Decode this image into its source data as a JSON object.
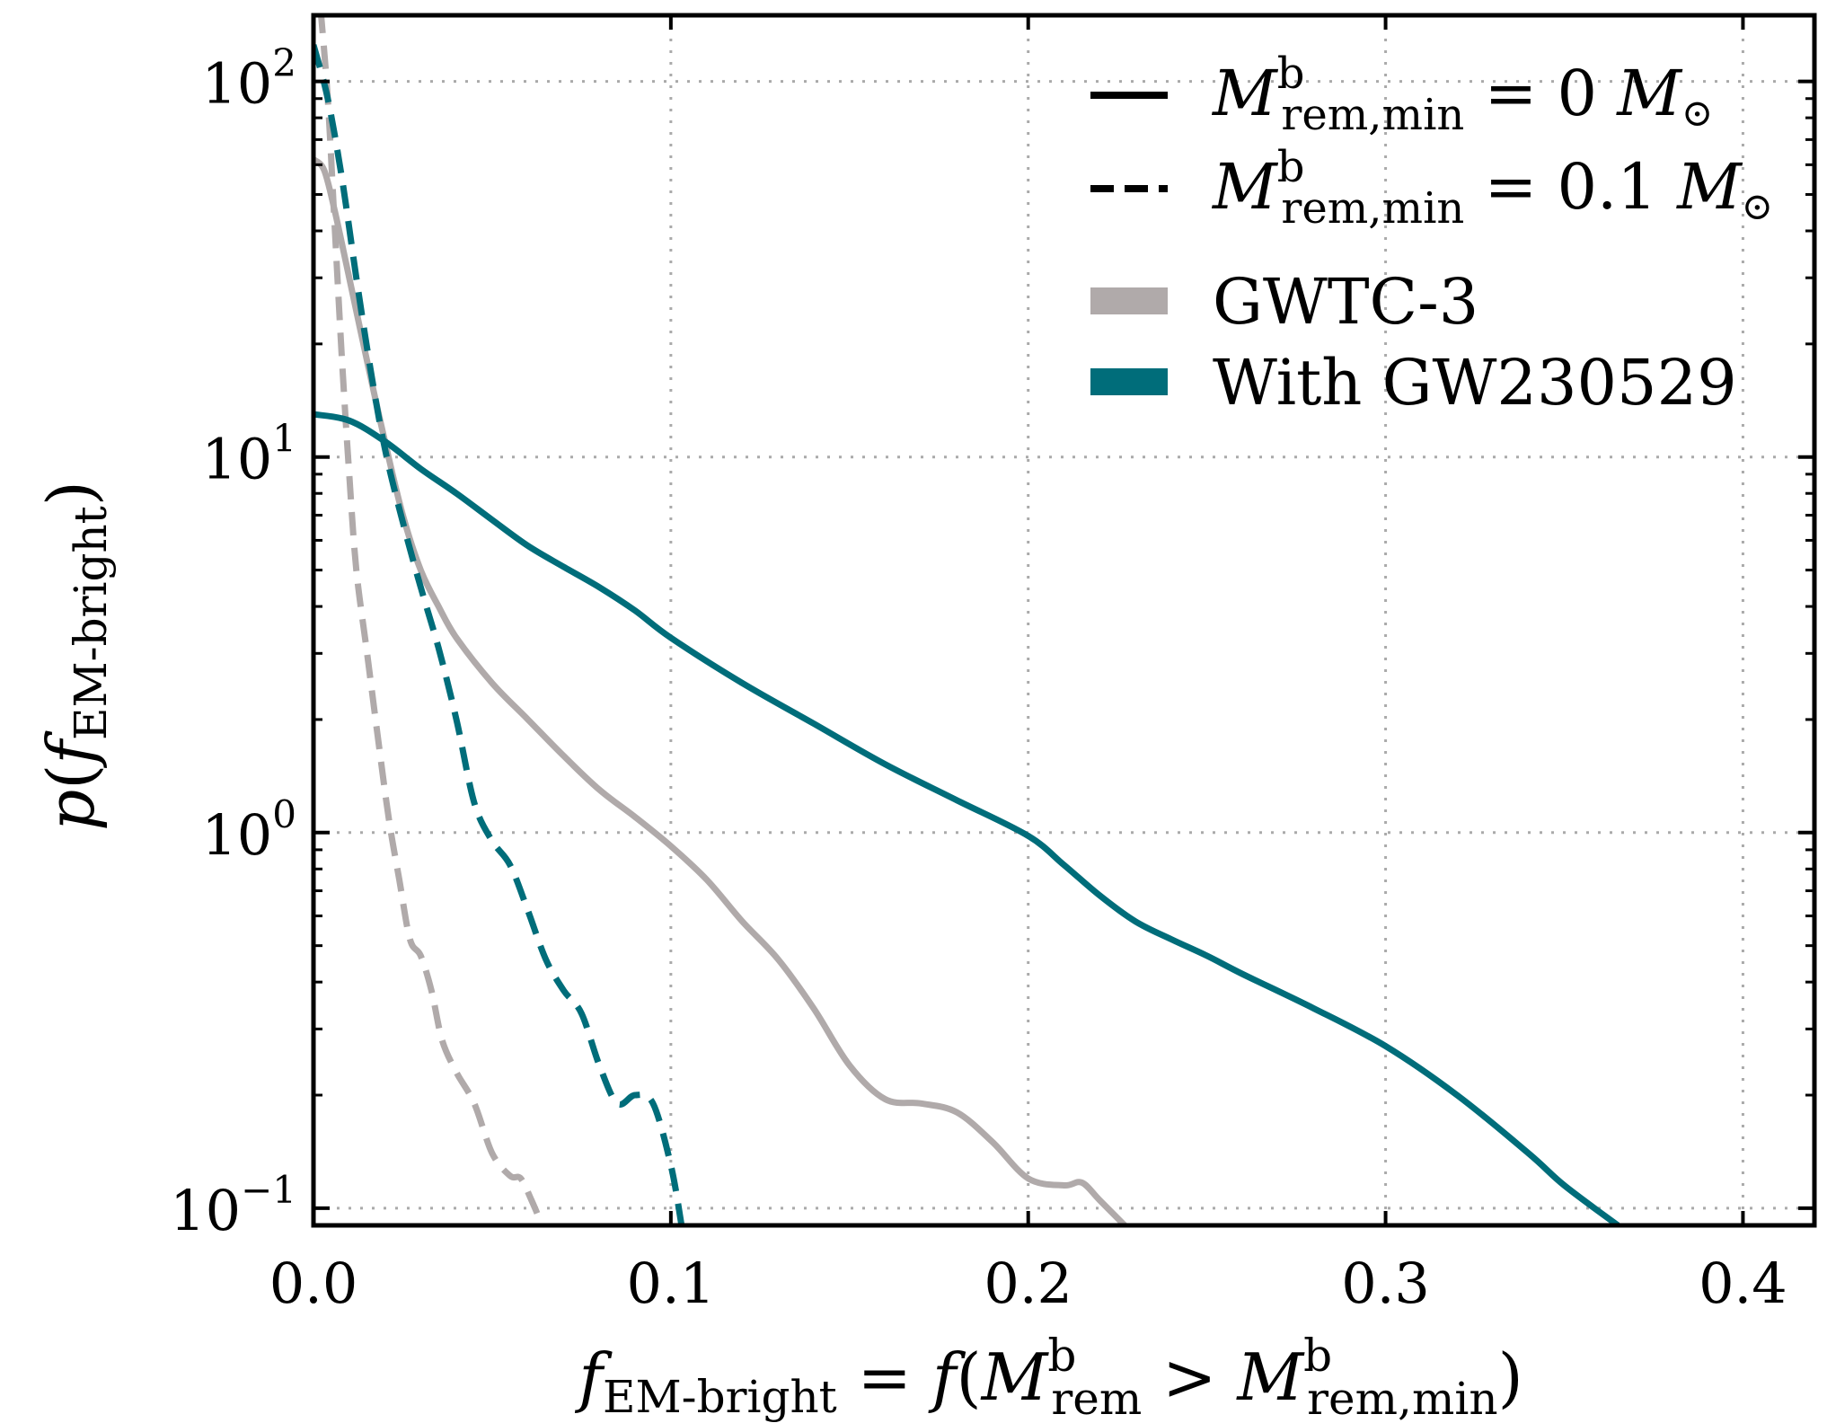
{
  "chart_data": {
    "type": "line",
    "scale": {
      "x": "linear",
      "y": "log"
    },
    "xlim": [
      0.0,
      0.42
    ],
    "ylim": [
      0.09,
      150
    ],
    "grid": true,
    "x_ticks": [
      {
        "value": 0.0,
        "label": "0.0"
      },
      {
        "value": 0.1,
        "label": "0.1"
      },
      {
        "value": 0.2,
        "label": "0.2"
      },
      {
        "value": 0.3,
        "label": "0.3"
      },
      {
        "value": 0.4,
        "label": "0.4"
      }
    ],
    "y_ticks": [
      {
        "value": 0.1,
        "base": "10",
        "exp": "−1"
      },
      {
        "value": 1,
        "base": "10",
        "exp": "0"
      },
      {
        "value": 10,
        "base": "10",
        "exp": "1"
      },
      {
        "value": 100,
        "base": "10",
        "exp": "2"
      }
    ],
    "xlabel": {
      "f": "f",
      "em_sub": "EM-bright",
      "eq": " = ",
      "f2": "f",
      "open": "(",
      "M": "M",
      "sup_b": "b",
      "rem_sub": "rem",
      "gt": " > ",
      "M2": "M",
      "sup_b2": "b",
      "remmin_sub": "rem,min",
      "close": ")"
    },
    "ylabel": {
      "p": "p",
      "open": "(",
      "f": "f",
      "sub": "EM-bright",
      "close": ")"
    },
    "legend": {
      "placement": "top-right",
      "entries": [
        {
          "M": "M",
          "sup": "b",
          "sub": "rem,min",
          "rest_pre": " = 0 ",
          "unit": "M",
          "sun": "⊙",
          "style": "solid",
          "color": "#000000"
        },
        {
          "M": "M",
          "sup": "b",
          "sub": "rem,min",
          "rest_pre": " = 0.1 ",
          "unit": "M",
          "sun": "⊙",
          "style": "dashed",
          "color": "#000000"
        },
        {
          "label": "GWTC-3",
          "style": "patch",
          "color": "#b0aaaa"
        },
        {
          "label": "With GW230529",
          "style": "patch",
          "color": "#006d7a"
        }
      ]
    },
    "series": [
      {
        "name": "GWTC-3, M_rem,min = 0",
        "color": "#b0aaaa",
        "dash": "solid",
        "points": [
          [
            0.0,
            62
          ],
          [
            0.003,
            58
          ],
          [
            0.006,
            45
          ],
          [
            0.01,
            30
          ],
          [
            0.015,
            18
          ],
          [
            0.02,
            11
          ],
          [
            0.025,
            7
          ],
          [
            0.03,
            5
          ],
          [
            0.035,
            4
          ],
          [
            0.04,
            3.3
          ],
          [
            0.05,
            2.5
          ],
          [
            0.06,
            2.0
          ],
          [
            0.07,
            1.6
          ],
          [
            0.08,
            1.3
          ],
          [
            0.09,
            1.1
          ],
          [
            0.1,
            0.92
          ],
          [
            0.11,
            0.75
          ],
          [
            0.12,
            0.58
          ],
          [
            0.13,
            0.46
          ],
          [
            0.14,
            0.34
          ],
          [
            0.15,
            0.24
          ],
          [
            0.16,
            0.195
          ],
          [
            0.17,
            0.19
          ],
          [
            0.18,
            0.18
          ],
          [
            0.19,
            0.15
          ],
          [
            0.2,
            0.12
          ],
          [
            0.21,
            0.115
          ],
          [
            0.215,
            0.117
          ],
          [
            0.22,
            0.105
          ],
          [
            0.227,
            0.09
          ]
        ]
      },
      {
        "name": "GWTC-3, M_rem,min = 0.1",
        "color": "#b0aaaa",
        "dash": "dashed",
        "points": [
          [
            0.002,
            155
          ],
          [
            0.004,
            90
          ],
          [
            0.006,
            40
          ],
          [
            0.008,
            18
          ],
          [
            0.01,
            9
          ],
          [
            0.012,
            5
          ],
          [
            0.015,
            3
          ],
          [
            0.018,
            1.8
          ],
          [
            0.021,
            1.1
          ],
          [
            0.024,
            0.75
          ],
          [
            0.027,
            0.52
          ],
          [
            0.03,
            0.47
          ],
          [
            0.033,
            0.38
          ],
          [
            0.036,
            0.28
          ],
          [
            0.04,
            0.23
          ],
          [
            0.045,
            0.19
          ],
          [
            0.05,
            0.14
          ],
          [
            0.055,
            0.122
          ],
          [
            0.058,
            0.12
          ],
          [
            0.061,
            0.105
          ],
          [
            0.064,
            0.09
          ]
        ]
      },
      {
        "name": "With GW230529, M_rem,min = 0",
        "color": "#006d7a",
        "dash": "solid",
        "points": [
          [
            0.0,
            13
          ],
          [
            0.01,
            12.5
          ],
          [
            0.02,
            11
          ],
          [
            0.03,
            9.3
          ],
          [
            0.04,
            8
          ],
          [
            0.05,
            6.8
          ],
          [
            0.06,
            5.8
          ],
          [
            0.07,
            5.1
          ],
          [
            0.08,
            4.5
          ],
          [
            0.09,
            3.9
          ],
          [
            0.1,
            3.3
          ],
          [
            0.12,
            2.5
          ],
          [
            0.14,
            1.95
          ],
          [
            0.16,
            1.52
          ],
          [
            0.18,
            1.22
          ],
          [
            0.2,
            0.98
          ],
          [
            0.21,
            0.82
          ],
          [
            0.22,
            0.68
          ],
          [
            0.23,
            0.58
          ],
          [
            0.24,
            0.52
          ],
          [
            0.25,
            0.47
          ],
          [
            0.26,
            0.42
          ],
          [
            0.28,
            0.34
          ],
          [
            0.3,
            0.27
          ],
          [
            0.32,
            0.2
          ],
          [
            0.34,
            0.14
          ],
          [
            0.35,
            0.115
          ],
          [
            0.365,
            0.09
          ]
        ]
      },
      {
        "name": "With GW230529, M_rem,min = 0.1",
        "color": "#006d7a",
        "dash": "dashed",
        "points": [
          [
            0.0,
            125
          ],
          [
            0.004,
            90
          ],
          [
            0.008,
            55
          ],
          [
            0.012,
            30
          ],
          [
            0.016,
            17
          ],
          [
            0.02,
            10.5
          ],
          [
            0.025,
            6.7
          ],
          [
            0.03,
            4.5
          ],
          [
            0.035,
            3.1
          ],
          [
            0.04,
            2.0
          ],
          [
            0.045,
            1.2
          ],
          [
            0.05,
            0.95
          ],
          [
            0.055,
            0.82
          ],
          [
            0.06,
            0.62
          ],
          [
            0.065,
            0.46
          ],
          [
            0.07,
            0.38
          ],
          [
            0.075,
            0.33
          ],
          [
            0.08,
            0.24
          ],
          [
            0.085,
            0.19
          ],
          [
            0.09,
            0.2
          ],
          [
            0.095,
            0.19
          ],
          [
            0.1,
            0.13
          ],
          [
            0.103,
            0.09
          ]
        ]
      }
    ]
  }
}
